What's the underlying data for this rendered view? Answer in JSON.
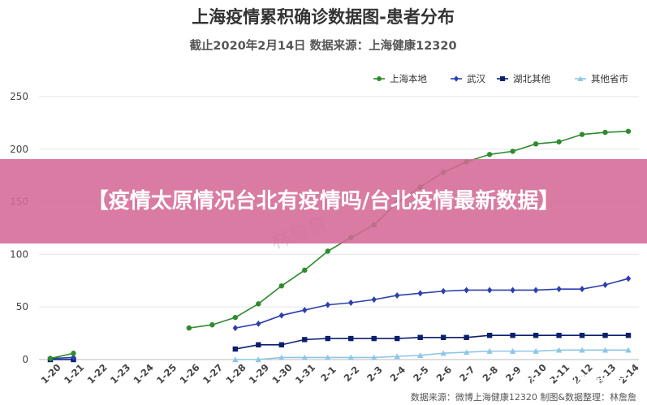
{
  "banner": {
    "text": "【疫情太原情况台北有疫情吗/台北疫情最新数据】"
  },
  "watermarks": {
    "center": "林詹詹",
    "zhihu": "知乎 @林詹詹"
  },
  "footer": {
    "source": "数据来源：微博上海健康12320 制图&数据整理：林詹詹"
  },
  "chart_data": {
    "type": "line",
    "title": "上海疫情累积确诊数据图-患者分布",
    "subtitle": "截止2020年2月14日 数据来源：上海健康12320",
    "ylim": [
      0,
      250
    ],
    "y_ticks": [
      0,
      50,
      100,
      150,
      200,
      250
    ],
    "grid": "horizontal",
    "legend_position": "top-right",
    "categories": [
      "1-20",
      "1-21",
      "1-22",
      "1-23",
      "1-24",
      "1-25",
      "1-26",
      "1-27",
      "1-28",
      "1-29",
      "1-30",
      "1-31",
      "2-1",
      "2-2",
      "2-3",
      "2-4",
      "2-5",
      "2-6",
      "2-7",
      "2-8",
      "2-9",
      "2-10",
      "2-11",
      "2-12",
      "2-13",
      "2-14"
    ],
    "series": [
      {
        "name": "上海本地",
        "color": "#2e8b2e",
        "marker": "circle",
        "values": [
          1,
          6,
          null,
          null,
          null,
          null,
          30,
          33,
          40,
          53,
          70,
          85,
          103,
          116,
          128,
          149,
          164,
          178,
          188,
          195,
          198,
          205,
          207,
          214,
          216,
          217
        ]
      },
      {
        "name": "武汉",
        "color": "#2b3fb0",
        "marker": "diamond",
        "values": [
          1,
          2,
          null,
          null,
          null,
          null,
          null,
          null,
          30,
          34,
          42,
          47,
          52,
          54,
          57,
          61,
          63,
          65,
          66,
          66,
          66,
          66,
          67,
          67,
          71,
          77
        ]
      },
      {
        "name": "湖北其他",
        "color": "#0b1f6e",
        "marker": "square",
        "values": [
          0,
          0,
          null,
          null,
          null,
          null,
          null,
          null,
          10,
          14,
          14,
          19,
          20,
          20,
          20,
          20,
          21,
          21,
          21,
          23,
          23,
          23,
          23,
          23,
          23,
          23
        ]
      },
      {
        "name": "其他省市",
        "color": "#8ec6e6",
        "marker": "triangle",
        "values": [
          0,
          0,
          null,
          null,
          null,
          null,
          null,
          null,
          0,
          0,
          2,
          2,
          2,
          2,
          2,
          3,
          4,
          6,
          7,
          8,
          8,
          8,
          9,
          9,
          9,
          9
        ]
      }
    ]
  }
}
